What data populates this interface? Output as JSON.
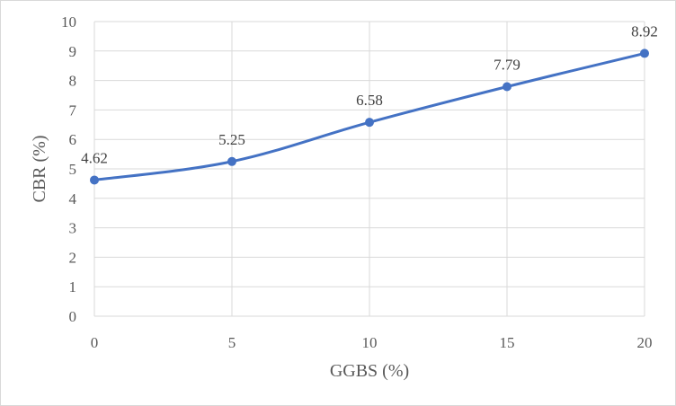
{
  "chart_data": {
    "type": "line",
    "title": "",
    "xlabel": "GGBS (%)",
    "ylabel": "CBR (%)",
    "x": [
      0,
      5,
      10,
      15,
      20
    ],
    "series": [
      {
        "values": [
          4.62,
          5.25,
          6.58,
          7.79,
          8.92
        ]
      }
    ],
    "data_labels": [
      "4.62",
      "5.25",
      "6.58",
      "7.79",
      "8.92"
    ],
    "xlim": [
      0,
      20
    ],
    "ylim": [
      0,
      10
    ],
    "x_ticks": [
      0,
      5,
      10,
      15,
      20
    ],
    "y_ticks": [
      0,
      1,
      2,
      3,
      4,
      5,
      6,
      7,
      8,
      9,
      10
    ],
    "grid": true,
    "smoothed": true,
    "legend": "none",
    "line_color": "#4472c4",
    "grid_color": "#d9d9d9"
  }
}
